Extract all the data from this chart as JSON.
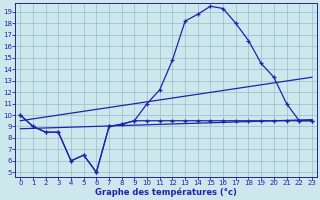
{
  "title": "Graphe des températures (°c)",
  "background_color": "#cce8ec",
  "line_color": "#2222aa",
  "grid_color": "#99bbcc",
  "xlim_min": -0.4,
  "xlim_max": 23.4,
  "ylim_min": 4.6,
  "ylim_max": 19.8,
  "xticks": [
    0,
    1,
    2,
    3,
    4,
    5,
    6,
    7,
    8,
    9,
    10,
    11,
    12,
    13,
    14,
    15,
    16,
    17,
    18,
    19,
    20,
    21,
    22,
    23
  ],
  "yticks": [
    5,
    6,
    7,
    8,
    9,
    10,
    11,
    12,
    13,
    14,
    15,
    16,
    17,
    18,
    19
  ],
  "hours": [
    0,
    1,
    2,
    3,
    4,
    5,
    6,
    7,
    8,
    9,
    10,
    11,
    12,
    13,
    14,
    15,
    16,
    17,
    18,
    19,
    20,
    21,
    22,
    23
  ],
  "temp_high": [
    10,
    9,
    8.5,
    8.5,
    6.0,
    6.5,
    5.0,
    9.0,
    9.2,
    9.5,
    11.0,
    12.2,
    14.8,
    18.2,
    18.8,
    19.5,
    19.3,
    18.0,
    16.5,
    14.5,
    13.3,
    11.0,
    9.5,
    9.5
  ],
  "temp_low": [
    10,
    9,
    8.5,
    8.5,
    6.0,
    6.5,
    5.0,
    9.0,
    9.2,
    9.5,
    9.5,
    9.5,
    9.5,
    9.5,
    9.5,
    9.5,
    9.5,
    9.5,
    9.5,
    9.5,
    9.5,
    9.5,
    9.5,
    9.5
  ],
  "trend_upper_start": 9.5,
  "trend_upper_end": 13.3,
  "trend_lower_start": 8.8,
  "trend_lower_end": 9.6
}
